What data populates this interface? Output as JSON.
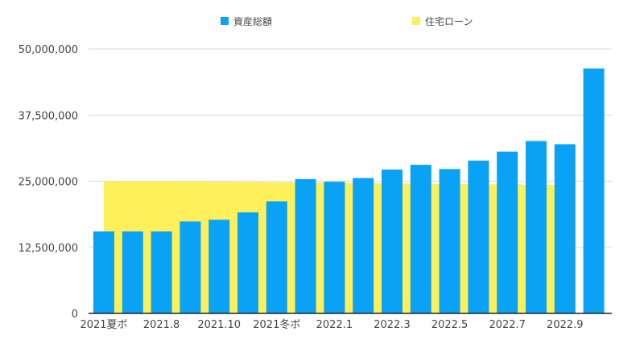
{
  "chart_data": {
    "type": "bar",
    "title": "",
    "xlabel": "",
    "ylabel": "",
    "ylim": [
      0,
      50000000
    ],
    "y_ticks": [
      "0",
      "12,500,000",
      "25,000,000",
      "37,500,000",
      "50,000,000"
    ],
    "x_tick_labels": [
      "2021夏ボ",
      "2021.8",
      "2021.10",
      "2021冬ボ",
      "2022.1",
      "2022.3",
      "2022.5",
      "2022.7",
      "2022.9"
    ],
    "grid": true,
    "legend_position": "top",
    "series": [
      {
        "name": "資産総額",
        "color": "#0aa2f5",
        "values": [
          15500000,
          15500000,
          15500000,
          17400000,
          17700000,
          19100000,
          21200000,
          25400000,
          24900000,
          25600000,
          27200000,
          28100000,
          27300000,
          28900000,
          30600000,
          32600000,
          32000000,
          46300000
        ]
      },
      {
        "name": "住宅ローン",
        "color": "#fdf05a",
        "values": [
          25000000,
          25000000,
          25000000,
          24950000,
          24900000,
          24850000,
          24800000,
          24750000,
          24700000,
          24650000,
          24600000,
          24550000,
          24500000,
          24450000,
          24400000,
          24350000,
          24300000,
          null
        ]
      }
    ]
  }
}
